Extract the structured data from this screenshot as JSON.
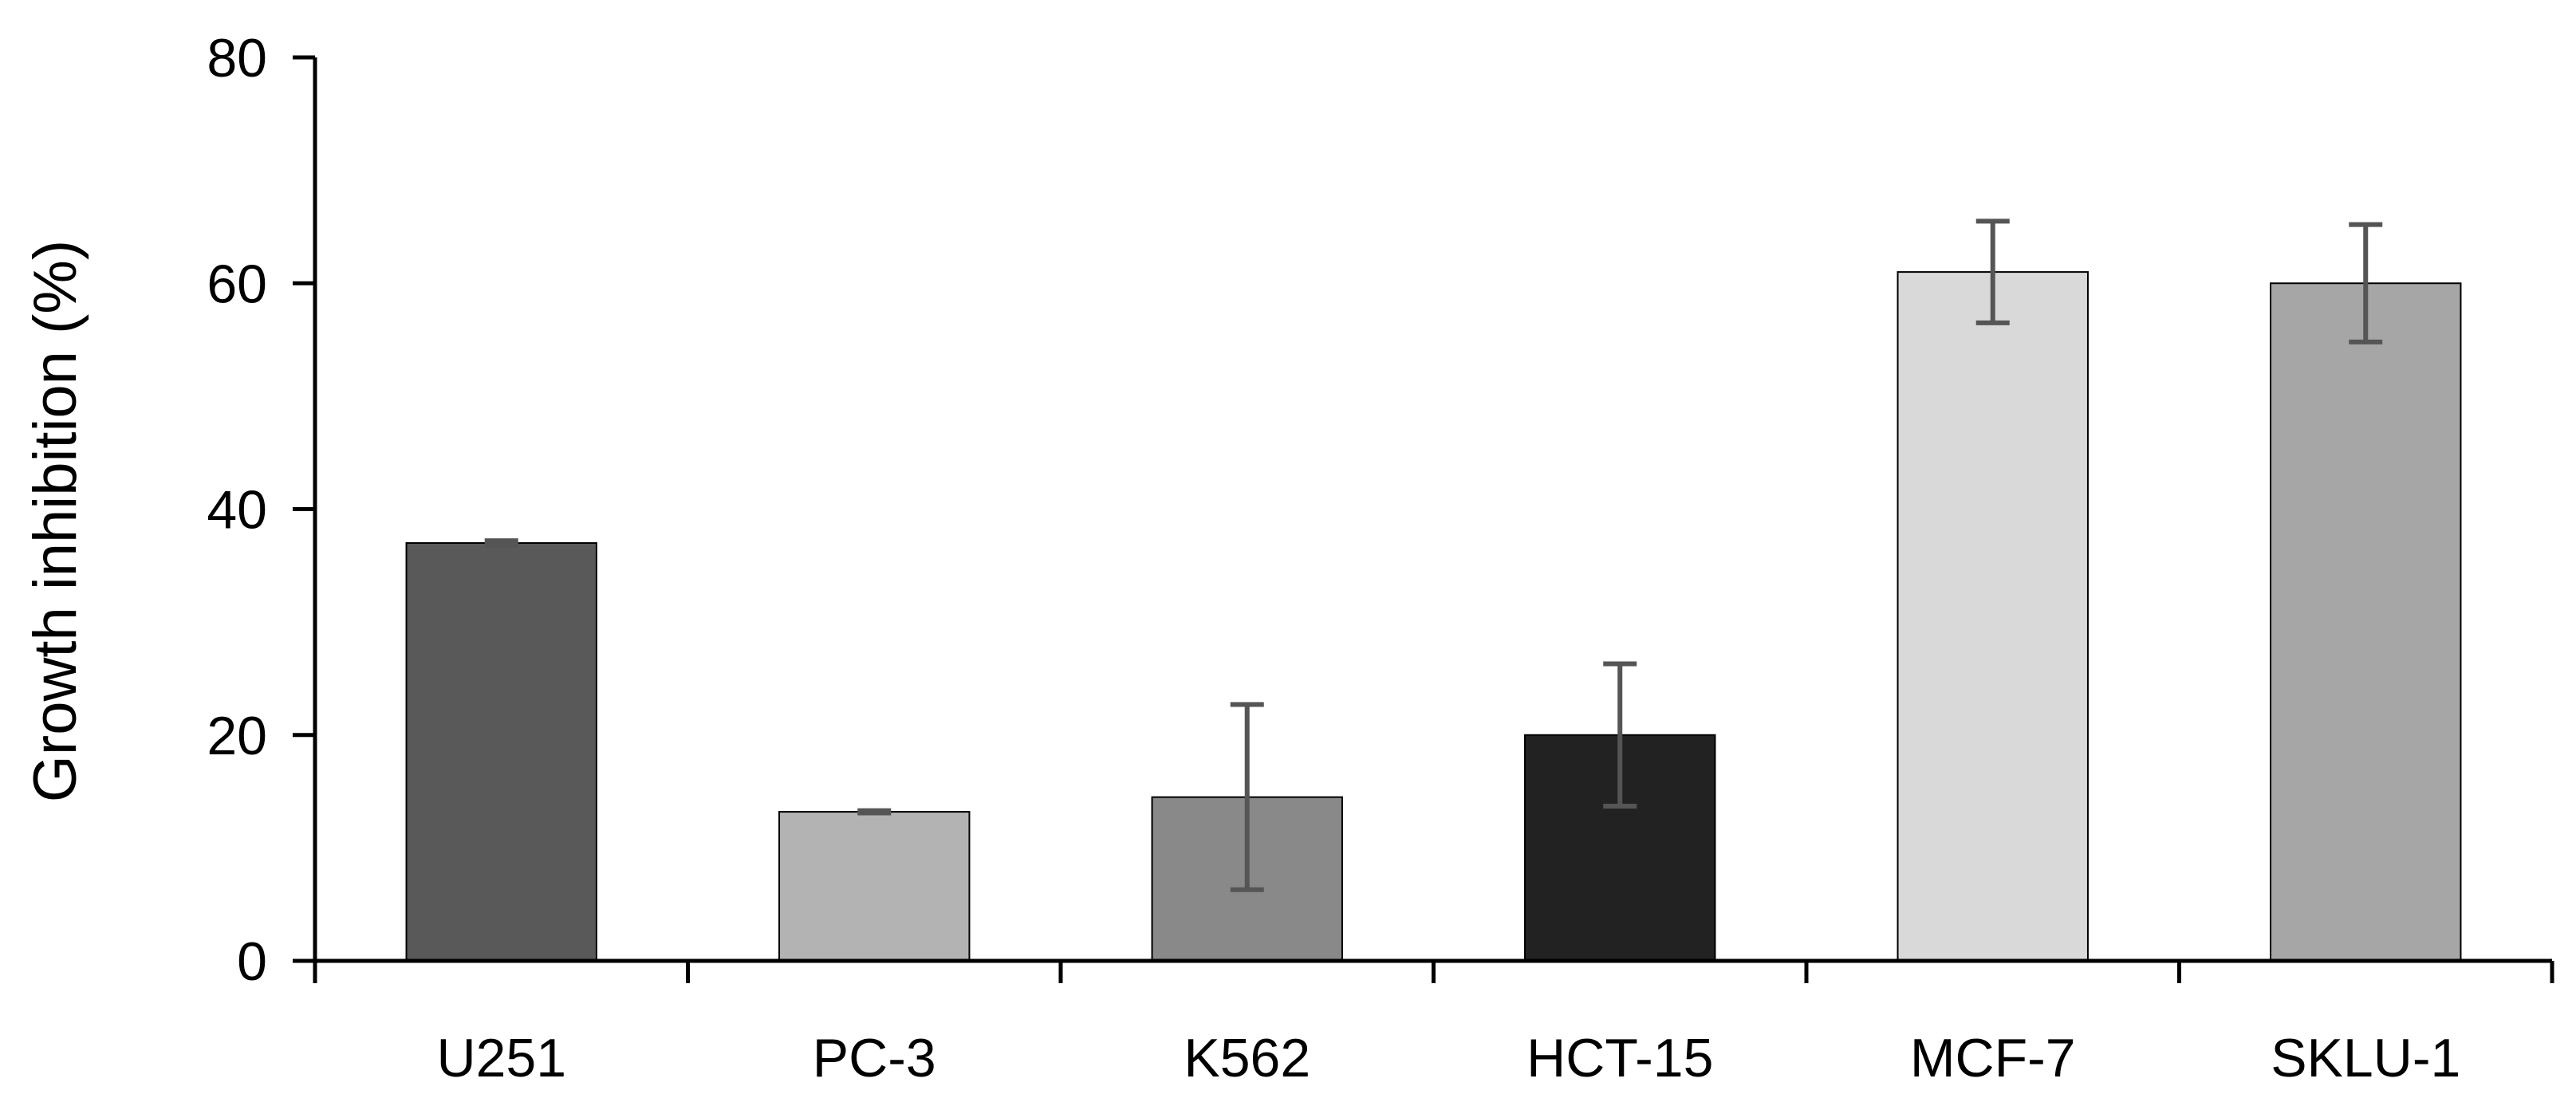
{
  "chart_data": {
    "type": "bar",
    "title": "",
    "xlabel": "",
    "ylabel": "Growth inhibition (%)",
    "categories": [
      "U251",
      "PC-3",
      "K562",
      "HCT-15",
      "MCF-7",
      "SKLU-1"
    ],
    "values": [
      37.0,
      13.2,
      14.5,
      20.0,
      61.0,
      60.0
    ],
    "errors": [
      0.2,
      0.1,
      8.2,
      6.3,
      4.5,
      5.2
    ],
    "bar_colors": [
      "#595959",
      "#b3b3b3",
      "#898989",
      "#222222",
      "#d9d9d9",
      "#a6a6a6"
    ],
    "error_bar_color": "#555555",
    "ylim": [
      0,
      80
    ],
    "yticks": [
      0,
      20,
      40,
      60,
      80
    ],
    "grid": false,
    "legend": "none"
  }
}
